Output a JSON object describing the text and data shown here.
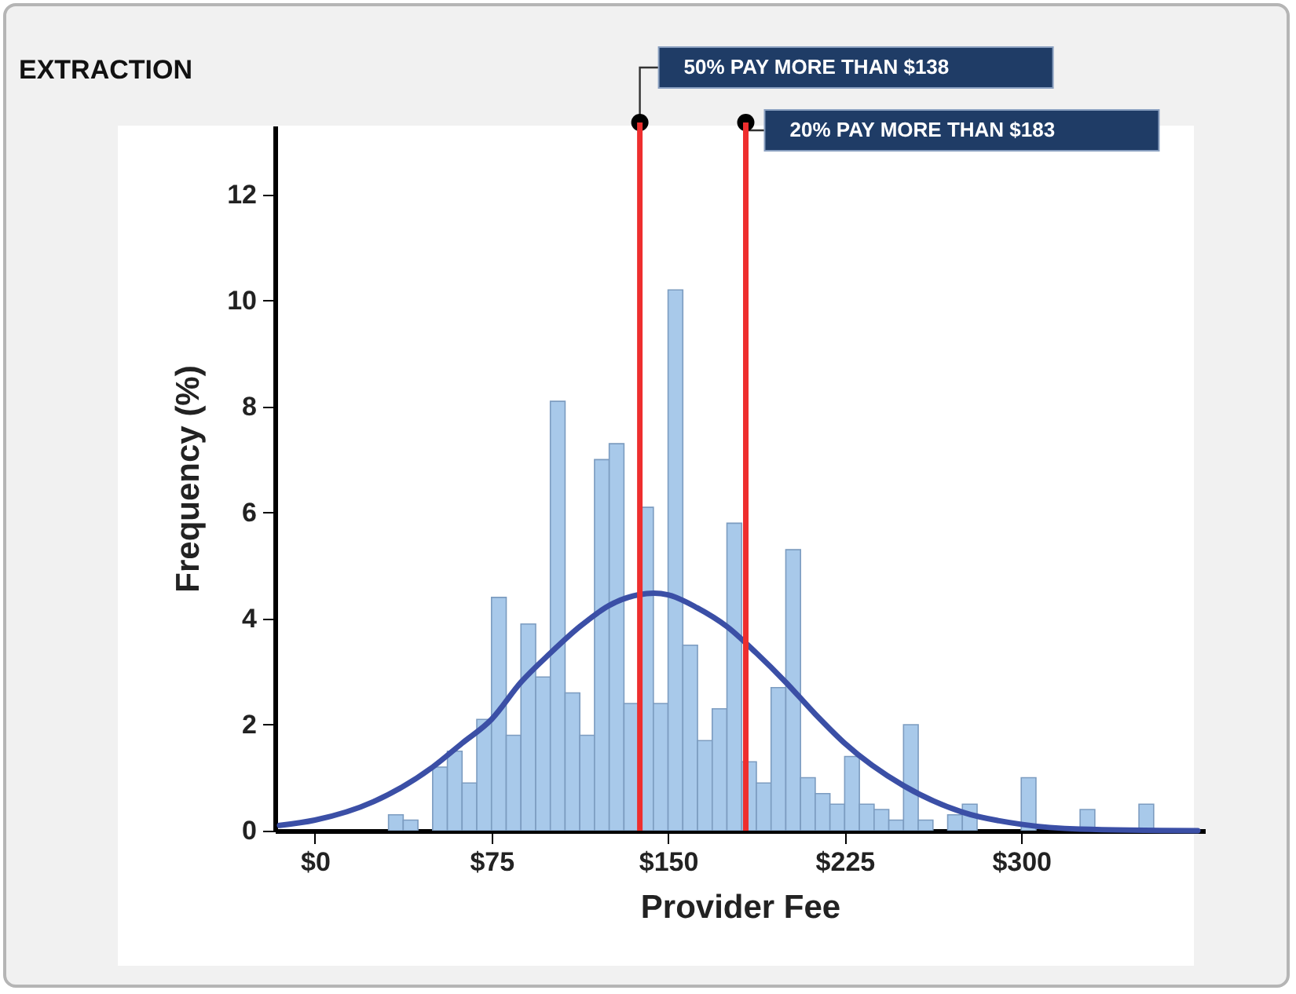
{
  "chart_data": {
    "type": "histogram",
    "title": "EXTRACTION",
    "xlabel": "Provider Fee",
    "ylabel": "Frequency (%)",
    "bins": [
      31.25,
      37.5,
      43.75,
      50,
      56.25,
      62.5,
      68.75,
      75,
      81.25,
      87.5,
      93.75,
      100,
      106.25,
      112.5,
      118.75,
      125,
      131.25,
      137.5,
      143.75,
      150,
      156.25,
      162.5,
      168.75,
      175,
      181.25,
      187.5,
      193.75,
      200,
      206.25,
      212.5,
      218.75,
      225,
      231.25,
      237.5,
      243.75,
      250,
      256.25,
      262.5,
      268.75,
      275,
      281.25,
      287.5,
      293.75,
      300,
      306.25,
      312.5,
      318.75,
      325,
      331.25,
      337.5,
      343.75,
      350,
      356.25
    ],
    "series": [
      {
        "color": "#a8c9ea",
        "values": [
          0.3,
          0.2,
          0,
          1.2,
          1.5,
          0.9,
          2.1,
          4.4,
          1.8,
          3.9,
          2.9,
          8.1,
          2.6,
          1.8,
          7.0,
          7.3,
          2.4,
          6.1,
          2.4,
          10.2,
          3.5,
          1.7,
          2.3,
          5.8,
          1.3,
          0.9,
          2.7,
          5.3,
          1.0,
          0.7,
          0.5,
          1.4,
          0.5,
          0.4,
          0.2,
          2.0,
          0.2,
          0,
          0.3,
          0.5,
          0,
          0,
          0,
          1.0,
          0,
          0,
          0,
          0.4,
          0,
          0,
          0,
          0.5
        ]
      },
      {
        "type": "line",
        "color": "#3b4fa6",
        "x": [
          -15,
          0,
          25,
          50,
          62.5,
          75,
          87.5,
          100,
          112.5,
          125,
          137.5,
          144,
          150,
          162.5,
          175,
          187.5,
          200,
          212.5,
          225,
          250,
          275,
          300,
          325,
          375
        ],
        "values": [
          0.1,
          0.2,
          0.55,
          1.2,
          1.65,
          2.1,
          2.8,
          3.35,
          3.85,
          4.25,
          4.45,
          4.48,
          4.45,
          4.2,
          3.85,
          3.35,
          2.8,
          2.2,
          1.65,
          0.85,
          0.35,
          0.12,
          0.03,
          0
        ]
      }
    ],
    "xlim": [
      -17,
      378
    ],
    "xticks": [
      {
        "value": 0,
        "label": "$0"
      },
      {
        "value": 75,
        "label": "$75"
      },
      {
        "value": 150,
        "label": "$150"
      },
      {
        "value": 225,
        "label": "$225"
      },
      {
        "value": 300,
        "label": "$300"
      }
    ],
    "ylim": [
      0,
      13.3
    ],
    "yticks": [
      0,
      2,
      4,
      6,
      8,
      10,
      12
    ],
    "ref_lines": [
      {
        "axis": "x",
        "value": 138,
        "label": "50% PAY MORE THAN $138",
        "color": "#ee2e2e"
      },
      {
        "axis": "x",
        "value": 183,
        "label": "20% PAY MORE THAN $183",
        "color": "#ee2e2e"
      }
    ]
  }
}
